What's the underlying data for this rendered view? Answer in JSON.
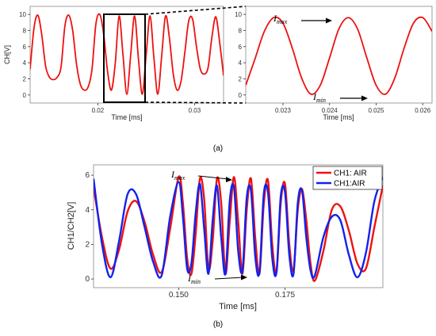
{
  "chart_data": [
    {
      "type": "line",
      "panel": "(a) left",
      "xlabel": "Time [ms]",
      "ylabel": "CH[V]",
      "xlim": [
        0.013,
        0.033
      ],
      "ylim": [
        -1,
        11
      ],
      "xticks": [
        0.02,
        0.03
      ],
      "xtick_labels": [
        "0.02",
        "0.03"
      ],
      "yticks": [
        0,
        2,
        4,
        6,
        8,
        10
      ],
      "ytick_labels": [
        "0",
        "2",
        "4",
        "6",
        "8",
        "10"
      ],
      "series": [
        {
          "color": "#ee1111",
          "x": [
            0.013,
            0.0134,
            0.0138,
            0.0142,
            0.0146,
            0.015,
            0.0154,
            0.0158,
            0.0162,
            0.0166,
            0.017,
            0.0174,
            0.0178,
            0.0182,
            0.0186,
            0.019,
            0.0194,
            0.0198,
            0.0202,
            0.0206,
            0.021,
            0.0214,
            0.0218,
            0.0222,
            0.0226,
            0.023,
            0.0234,
            0.0238,
            0.0242,
            0.0246,
            0.025,
            0.0254,
            0.0258,
            0.0262,
            0.0266,
            0.027,
            0.0274,
            0.0278,
            0.0282,
            0.0286,
            0.029,
            0.0294,
            0.0298,
            0.0302,
            0.0306,
            0.031,
            0.0314,
            0.0318,
            0.0322,
            0.0326,
            0.033
          ],
          "y": [
            3.2,
            8.3,
            9.9,
            7.5,
            3.6,
            2.2,
            1.9,
            2.2,
            3.5,
            8.6,
            9.9,
            8.0,
            3.8,
            1.3,
            0.6,
            1.0,
            3.2,
            8.8,
            10.0,
            7.6,
            3.0,
            0.6,
            3.9,
            9.8,
            5.0,
            0.1,
            5.0,
            9.8,
            4.5,
            0.1,
            5.0,
            9.8,
            4.6,
            0.1,
            4.8,
            9.8,
            7.1,
            2.6,
            0.6,
            1.7,
            5.3,
            9.2,
            9.4,
            6.0,
            3.2,
            2.6,
            3.4,
            7.2,
            9.7,
            6.5,
            2.4
          ]
        }
      ]
    },
    {
      "type": "line",
      "panel": "(a) right",
      "xlabel": "Time [ms]",
      "ylabel": "",
      "xlim": [
        0.0222,
        0.0262
      ],
      "ylim": [
        -1,
        11
      ],
      "xticks": [
        0.023,
        0.024,
        0.025,
        0.026
      ],
      "xtick_labels": [
        "0.023",
        "0.024",
        "0.025",
        "0.026"
      ],
      "yticks": [
        0,
        2,
        4,
        6,
        8,
        10
      ],
      "ytick_labels": [
        "0",
        "2",
        "4",
        "6",
        "8",
        "10"
      ],
      "annotations": [
        {
          "base": "I",
          "sub": "max"
        },
        {
          "base": "I",
          "sub": "min"
        }
      ],
      "series": [
        {
          "color": "#ee1111",
          "x": [
            0.0222,
            0.0224,
            0.0226,
            0.0228,
            0.023,
            0.0232,
            0.0234,
            0.0236,
            0.0238,
            0.024,
            0.0242,
            0.0244,
            0.0246,
            0.0248,
            0.025,
            0.0252,
            0.0254,
            0.0256,
            0.0258,
            0.026,
            0.0262
          ],
          "y": [
            1.2,
            4.5,
            7.9,
            9.6,
            8.9,
            5.8,
            2.1,
            0.1,
            1.2,
            4.6,
            8.2,
            9.6,
            8.2,
            4.6,
            1.2,
            0.1,
            2.1,
            5.8,
            8.9,
            9.6,
            7.9
          ]
        }
      ]
    },
    {
      "type": "line",
      "panel": "(b)",
      "xlabel": "Time [ms]",
      "ylabel": "CH1/CH2[V]",
      "xlim": [
        0.13,
        0.198
      ],
      "ylim": [
        -0.5,
        6.6
      ],
      "xticks": [
        0.15,
        0.175
      ],
      "xtick_labels": [
        "0.150",
        "0.175"
      ],
      "yticks": [
        0,
        2,
        4,
        6
      ],
      "ytick_labels": [
        "0",
        "2",
        "4",
        "6"
      ],
      "legend_position": "top-right",
      "annotations": [
        {
          "base": "I",
          "sub": "max"
        },
        {
          "base": "I",
          "sub": "min"
        }
      ],
      "series": [
        {
          "name": "CH1: AIR",
          "color": "#ee1111",
          "x": [
            0.13,
            0.132,
            0.134,
            0.136,
            0.138,
            0.14,
            0.142,
            0.144,
            0.146,
            0.148,
            0.15,
            0.151,
            0.152,
            0.153,
            0.154,
            0.155,
            0.156,
            0.157,
            0.158,
            0.159,
            0.16,
            0.161,
            0.162,
            0.163,
            0.164,
            0.165,
            0.166,
            0.167,
            0.168,
            0.169,
            0.17,
            0.171,
            0.172,
            0.173,
            0.174,
            0.175,
            0.176,
            0.177,
            0.178,
            0.179,
            0.18,
            0.181,
            0.182,
            0.184,
            0.186,
            0.188,
            0.19,
            0.192,
            0.194,
            0.196,
            0.198
          ],
          "y": [
            5.3,
            2.4,
            0.6,
            1.7,
            3.9,
            4.5,
            3.3,
            1.4,
            0.4,
            2.9,
            5.9,
            4.4,
            1.2,
            0.3,
            2.6,
            5.8,
            4.6,
            0.6,
            2.2,
            5.8,
            4.4,
            0.3,
            3.3,
            5.9,
            3.3,
            0.3,
            4.0,
            5.8,
            2.4,
            0.3,
            4.3,
            5.7,
            2.0,
            0.4,
            4.4,
            5.5,
            2.0,
            0.5,
            4.0,
            5.2,
            3.4,
            0.9,
            -0.1,
            1.6,
            4.0,
            4.2,
            2.8,
            0.9,
            0.6,
            3.0,
            5.4
          ]
        },
        {
          "name": "CH1:AIR",
          "color": "#1122ee",
          "x": [
            0.13,
            0.132,
            0.134,
            0.136,
            0.138,
            0.14,
            0.142,
            0.144,
            0.146,
            0.148,
            0.15,
            0.151,
            0.152,
            0.153,
            0.154,
            0.155,
            0.156,
            0.157,
            0.158,
            0.159,
            0.16,
            0.161,
            0.162,
            0.163,
            0.164,
            0.165,
            0.166,
            0.167,
            0.168,
            0.169,
            0.17,
            0.171,
            0.172,
            0.173,
            0.174,
            0.175,
            0.176,
            0.177,
            0.178,
            0.179,
            0.18,
            0.181,
            0.182,
            0.184,
            0.186,
            0.188,
            0.19,
            0.192,
            0.194,
            0.196,
            0.198
          ],
          "y": [
            5.8,
            2.0,
            0.1,
            2.2,
            4.9,
            4.9,
            3.0,
            1.0,
            0.2,
            3.6,
            5.6,
            3.6,
            0.6,
            0.9,
            3.8,
            5.5,
            2.9,
            0.3,
            3.4,
            5.4,
            2.4,
            0.3,
            4.5,
            5.3,
            1.6,
            0.5,
            4.7,
            5.1,
            1.3,
            0.4,
            4.9,
            5.0,
            1.2,
            0.4,
            4.8,
            5.0,
            1.4,
            0.3,
            4.4,
            5.1,
            2.4,
            0.5,
            0.2,
            2.4,
            3.6,
            3.4,
            1.4,
            0.1,
            1.5,
            4.5,
            5.9
          ]
        }
      ]
    }
  ],
  "captions": {
    "a": "(a)",
    "b": "(b)"
  }
}
